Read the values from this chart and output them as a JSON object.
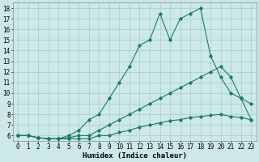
{
  "xlabel": "Humidex (Indice chaleur)",
  "xlim": [
    -0.5,
    23.5
  ],
  "ylim": [
    5.5,
    18.5
  ],
  "yticks": [
    6,
    7,
    8,
    9,
    10,
    11,
    12,
    13,
    14,
    15,
    16,
    17,
    18
  ],
  "xticks": [
    0,
    1,
    2,
    3,
    4,
    5,
    6,
    7,
    8,
    9,
    10,
    11,
    12,
    13,
    14,
    15,
    16,
    17,
    18,
    19,
    20,
    21,
    22,
    23
  ],
  "bg_color": "#cce8e8",
  "grid_color": "#aacccc",
  "line_color": "#1a7a6e",
  "line1_y": [
    6.0,
    6.0,
    5.8,
    5.7,
    5.7,
    6.0,
    6.5,
    7.5,
    8.0,
    9.5,
    11.0,
    12.5,
    14.5,
    15.0,
    17.5,
    15.0,
    17.0,
    17.5,
    18.0,
    13.5,
    11.5,
    10.0,
    9.5,
    9.0
  ],
  "line2_y": [
    6.0,
    6.0,
    5.8,
    5.7,
    5.7,
    5.8,
    6.0,
    6.0,
    6.5,
    7.0,
    7.5,
    8.0,
    8.5,
    9.0,
    9.5,
    10.0,
    10.5,
    11.0,
    11.5,
    12.0,
    12.5,
    11.5,
    9.5,
    7.5
  ],
  "line3_y": [
    6.0,
    6.0,
    5.8,
    5.7,
    5.7,
    5.7,
    5.7,
    5.7,
    6.0,
    6.0,
    6.3,
    6.5,
    6.8,
    7.0,
    7.2,
    7.4,
    7.5,
    7.7,
    7.8,
    7.9,
    8.0,
    7.8,
    7.7,
    7.5
  ],
  "marker": "D",
  "marker_size": 1.8,
  "line_width": 0.8,
  "tick_fontsize": 5.5,
  "xlabel_fontsize": 6.5
}
